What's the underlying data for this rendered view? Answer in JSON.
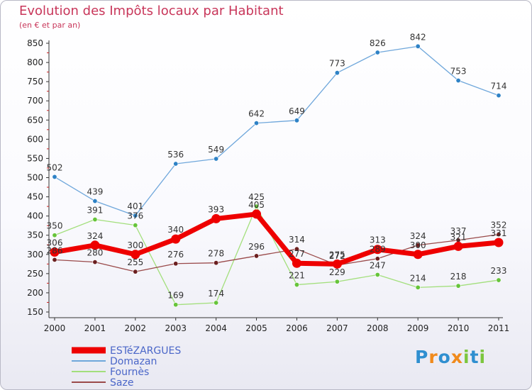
{
  "header": {
    "title": "Evolution des Impôts locaux par Habitant",
    "subtitle": "(en € et par an)"
  },
  "logo": {
    "letters": [
      "P",
      "r",
      "o",
      "x",
      "i",
      "t",
      "i"
    ],
    "colors": [
      "#2f8fd0",
      "#f08a1c",
      "#2f8fd0",
      "#f08a1c",
      "#7cc63e",
      "#2f8fd0",
      "#7cc63e"
    ]
  },
  "chart_data": {
    "type": "line",
    "title": "Evolution des Impôts locaux par Habitant",
    "subtitle": "(en € et par an)",
    "x": [
      "2000",
      "2001",
      "2002",
      "2003",
      "2004",
      "2005",
      "2006",
      "2007",
      "2008",
      "2009",
      "2010",
      "2011"
    ],
    "yticks": [
      150,
      200,
      250,
      300,
      350,
      400,
      450,
      500,
      550,
      600,
      650,
      700,
      750,
      800,
      850
    ],
    "ylim": [
      150,
      850
    ],
    "grid": false,
    "legend_position": "bottom-left",
    "series": [
      {
        "name": "ESTéZARGUES",
        "color": "#ee0000",
        "marker": "#ee0000",
        "width": 7,
        "radius": 6.5,
        "values": [
          306,
          324,
          300,
          340,
          393,
          405,
          277,
          275,
          313,
          300,
          321,
          331
        ],
        "labels": [
          "306",
          "324",
          "300",
          "340",
          "393",
          "405",
          "277",
          "275",
          "313",
          "300",
          "321",
          "331"
        ]
      },
      {
        "name": "Domazan",
        "color": "#6fa7db",
        "marker": "#2e82c6",
        "width": 1.3,
        "radius": 3.2,
        "values": [
          502,
          439,
          401,
          536,
          549,
          642,
          649,
          773,
          826,
          842,
          753,
          714
        ],
        "labels": [
          "502",
          "439",
          "401",
          "536",
          "549",
          "642",
          "649",
          "773",
          "826",
          "842",
          "753",
          "714"
        ]
      },
      {
        "name": "Fournès",
        "color": "#a3df7c",
        "marker": "#66c43a",
        "width": 1.3,
        "radius": 3.2,
        "values": [
          350,
          391,
          376,
          169,
          174,
          425,
          221,
          229,
          247,
          214,
          218,
          233
        ],
        "labels": [
          "350",
          "391",
          "376",
          "169",
          "174",
          "425",
          "221",
          "229",
          "247",
          "214",
          "218",
          "233"
        ]
      },
      {
        "name": "Saze",
        "color": "#9a4a4a",
        "marker": "#6b1f1f",
        "width": 1.3,
        "radius": 3.2,
        "values": [
          286,
          280,
          255,
          276,
          278,
          296,
          314,
          272,
          289,
          324,
          337,
          352
        ],
        "labels": [
          "286",
          "280",
          "255",
          "276",
          "278",
          "296",
          "314",
          "272",
          "289",
          "324",
          "337",
          "352"
        ]
      }
    ]
  }
}
